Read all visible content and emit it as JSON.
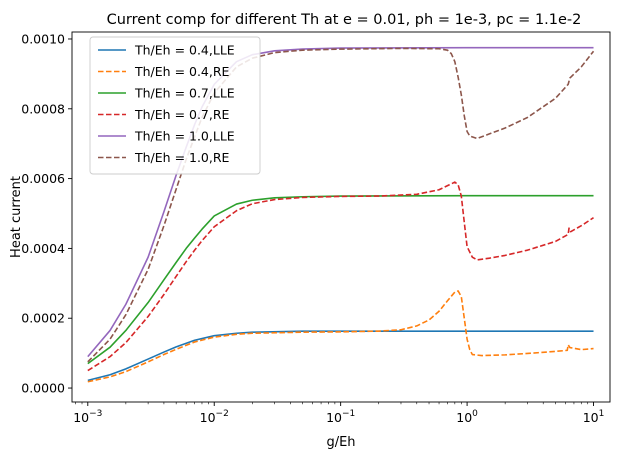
{
  "chart_data": {
    "type": "line",
    "title": "Current comp for different Th at e = 0.01, ph = 1e-3, pc = 1.1e-2",
    "xlabel": "g/Eh",
    "ylabel": "Heat current",
    "xscale": "log",
    "xlim": [
      0.00075,
      13.5
    ],
    "ylim": [
      -4e-05,
      0.00102
    ],
    "grid": false,
    "legend_position": "upper-left",
    "xticks": [
      {
        "value": 0.001,
        "base": "10",
        "exp": "−3"
      },
      {
        "value": 0.01,
        "base": "10",
        "exp": "−2"
      },
      {
        "value": 0.1,
        "base": "10",
        "exp": "−1"
      },
      {
        "value": 1,
        "base": "10",
        "exp": "0"
      },
      {
        "value": 10,
        "base": "10",
        "exp": "1"
      }
    ],
    "yticks": [
      {
        "value": 0.0,
        "label": "0.0000"
      },
      {
        "value": 0.0002,
        "label": "0.0002"
      },
      {
        "value": 0.0004,
        "label": "0.0004"
      },
      {
        "value": 0.0006,
        "label": "0.0006"
      },
      {
        "value": 0.0008,
        "label": "0.0008"
      },
      {
        "value": 0.001,
        "label": "0.0010"
      }
    ],
    "series": [
      {
        "name": "Th/Eh = 0.4,LLE",
        "color": "#1f77b4",
        "dash": false,
        "points": [
          [
            0.001,
            2.2e-05
          ],
          [
            0.0015,
            3.8e-05
          ],
          [
            0.002,
            5.5e-05
          ],
          [
            0.003,
            8.3e-05
          ],
          [
            0.004,
            0.000103
          ],
          [
            0.005,
            0.000118
          ],
          [
            0.007,
            0.000137
          ],
          [
            0.01,
            0.00015
          ],
          [
            0.015,
            0.000157
          ],
          [
            0.02,
            0.00016
          ],
          [
            0.05,
            0.000163
          ],
          [
            0.1,
            0.000163
          ],
          [
            0.3,
            0.000163
          ],
          [
            1,
            0.000163
          ],
          [
            10,
            0.000163
          ]
        ]
      },
      {
        "name": "Th/Eh = 0.4,RE",
        "color": "#ff7f0e",
        "dash": true,
        "points": [
          [
            0.001,
            1.8e-05
          ],
          [
            0.0015,
            3.2e-05
          ],
          [
            0.002,
            4.7e-05
          ],
          [
            0.003,
            7.5e-05
          ],
          [
            0.004,
            9.6e-05
          ],
          [
            0.005,
            0.000111
          ],
          [
            0.007,
            0.000132
          ],
          [
            0.01,
            0.000146
          ],
          [
            0.015,
            0.000154
          ],
          [
            0.02,
            0.000157
          ],
          [
            0.05,
            0.00016
          ],
          [
            0.1,
            0.000161
          ],
          [
            0.2,
            0.000163
          ],
          [
            0.3,
            0.000167
          ],
          [
            0.4,
            0.000178
          ],
          [
            0.5,
            0.000195
          ],
          [
            0.6,
            0.00022
          ],
          [
            0.7,
            0.00025
          ],
          [
            0.8,
            0.000275
          ],
          [
            0.85,
            0.000278
          ],
          [
            0.9,
            0.000262
          ],
          [
            0.95,
            0.0002
          ],
          [
            1.0,
            0.00014
          ],
          [
            1.05,
            0.00011
          ],
          [
            1.1,
            9.6e-05
          ],
          [
            1.3,
            9.3e-05
          ],
          [
            2,
            9.5e-05
          ],
          [
            3,
            9.9e-05
          ],
          [
            5,
            0.000105
          ],
          [
            6.2,
            0.000108
          ],
          [
            6.3,
            0.000124
          ],
          [
            6.5,
            0.000116
          ],
          [
            8,
            0.00011
          ],
          [
            10,
            0.000113
          ]
        ]
      },
      {
        "name": "Th/Eh = 0.7,LLE",
        "color": "#2ca02c",
        "dash": false,
        "points": [
          [
            0.001,
            7e-05
          ],
          [
            0.0015,
            0.000117
          ],
          [
            0.002,
            0.000165
          ],
          [
            0.003,
            0.000245
          ],
          [
            0.004,
            0.00031
          ],
          [
            0.005,
            0.00036
          ],
          [
            0.006,
            0.0004
          ],
          [
            0.007,
            0.00043
          ],
          [
            0.008,
            0.000455
          ],
          [
            0.01,
            0.000493
          ],
          [
            0.015,
            0.000527
          ],
          [
            0.02,
            0.000538
          ],
          [
            0.03,
            0.000545
          ],
          [
            0.05,
            0.000548
          ],
          [
            0.1,
            0.00055
          ],
          [
            1,
            0.000551
          ],
          [
            10,
            0.000551
          ]
        ]
      },
      {
        "name": "Th/Eh = 0.7,RE",
        "color": "#d62728",
        "dash": true,
        "points": [
          [
            0.001,
            5e-05
          ],
          [
            0.0015,
            9e-05
          ],
          [
            0.002,
            0.00013
          ],
          [
            0.003,
            0.000205
          ],
          [
            0.004,
            0.000268
          ],
          [
            0.005,
            0.00032
          ],
          [
            0.006,
            0.000362
          ],
          [
            0.007,
            0.000395
          ],
          [
            0.008,
            0.000422
          ],
          [
            0.01,
            0.000462
          ],
          [
            0.015,
            0.000508
          ],
          [
            0.02,
            0.000528
          ],
          [
            0.03,
            0.00054
          ],
          [
            0.05,
            0.000546
          ],
          [
            0.1,
            0.000549
          ],
          [
            0.2,
            0.00055
          ],
          [
            0.4,
            0.000555
          ],
          [
            0.6,
            0.000568
          ],
          [
            0.75,
            0.000585
          ],
          [
            0.8,
            0.00059
          ],
          [
            0.85,
            0.000582
          ],
          [
            0.9,
            0.00055
          ],
          [
            0.95,
            0.000475
          ],
          [
            1.0,
            0.000405
          ],
          [
            1.1,
            0.000375
          ],
          [
            1.2,
            0.000367
          ],
          [
            1.5,
            0.000372
          ],
          [
            2,
            0.00038
          ],
          [
            3,
            0.000395
          ],
          [
            5,
            0.00042
          ],
          [
            6.3,
            0.00044
          ],
          [
            6.4,
            0.000458
          ],
          [
            6.6,
            0.000448
          ],
          [
            8,
            0.000465
          ],
          [
            10,
            0.000488
          ]
        ]
      },
      {
        "name": "Th/Eh = 1.0,LLE",
        "color": "#9467bd",
        "dash": false,
        "points": [
          [
            0.001,
            9e-05
          ],
          [
            0.0015,
            0.000165
          ],
          [
            0.002,
            0.00024
          ],
          [
            0.003,
            0.000375
          ],
          [
            0.004,
            0.000505
          ],
          [
            0.005,
            0.00061
          ],
          [
            0.006,
            0.00069
          ],
          [
            0.007,
            0.000755
          ],
          [
            0.008,
            0.000805
          ],
          [
            0.01,
            0.00087
          ],
          [
            0.015,
            0.000935
          ],
          [
            0.02,
            0.000955
          ],
          [
            0.03,
            0.000966
          ],
          [
            0.05,
            0.000971
          ],
          [
            0.1,
            0.000974
          ],
          [
            1,
            0.000975
          ],
          [
            10,
            0.000975
          ]
        ]
      },
      {
        "name": "Th/Eh = 1.0,RE",
        "color": "#8c564b",
        "dash": true,
        "points": [
          [
            0.001,
            7.5e-05
          ],
          [
            0.0015,
            0.00014
          ],
          [
            0.002,
            0.00021
          ],
          [
            0.003,
            0.00034
          ],
          [
            0.004,
            0.000465
          ],
          [
            0.005,
            0.00057
          ],
          [
            0.006,
            0.000655
          ],
          [
            0.007,
            0.00072
          ],
          [
            0.008,
            0.000775
          ],
          [
            0.01,
            0.000845
          ],
          [
            0.015,
            0.00092
          ],
          [
            0.02,
            0.000945
          ],
          [
            0.03,
            0.000961
          ],
          [
            0.05,
            0.000968
          ],
          [
            0.1,
            0.000971
          ],
          [
            0.3,
            0.000973
          ],
          [
            0.6,
            0.000972
          ],
          [
            0.7,
            0.000968
          ],
          [
            0.75,
            0.000958
          ],
          [
            0.8,
            0.000935
          ],
          [
            0.85,
            0.00089
          ],
          [
            0.9,
            0.00084
          ],
          [
            0.95,
            0.00078
          ],
          [
            1.0,
            0.000735
          ],
          [
            1.05,
            0.000722
          ],
          [
            1.2,
            0.000715
          ],
          [
            1.5,
            0.000728
          ],
          [
            2,
            0.000745
          ],
          [
            3,
            0.000775
          ],
          [
            5,
            0.00083
          ],
          [
            6.3,
            0.00087
          ],
          [
            6.5,
            0.000888
          ],
          [
            8,
            0.00092
          ],
          [
            10,
            0.000965
          ]
        ]
      }
    ]
  }
}
